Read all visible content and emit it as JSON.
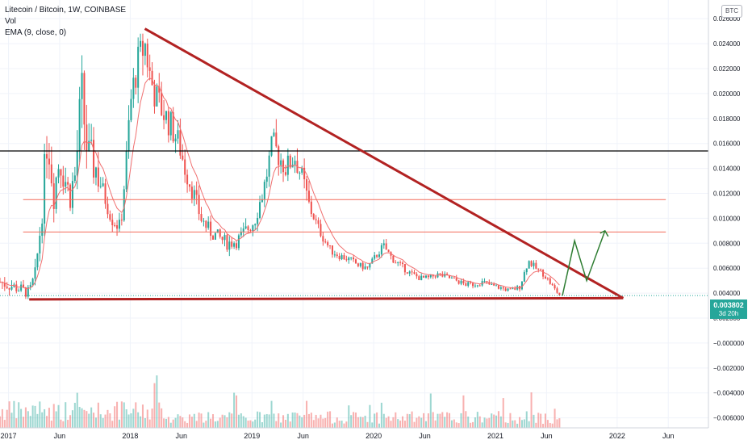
{
  "legend": {
    "title": "Litecoin / Bitcoin, 1W, COINBASE",
    "vol": "Vol",
    "ema": "EMA (9, close, 0)"
  },
  "currency_button": "BTC",
  "last_price": {
    "value": "0.003802",
    "countdown": "3d 20h",
    "color": "#26a69a"
  },
  "colors": {
    "up": "#26a69a",
    "down": "#ef5350",
    "ema": "#f07070",
    "trend": "#b22222",
    "level": "#f26b5b",
    "black_level": "#000000",
    "projection": "#2e7d32"
  },
  "chart_data": {
    "type": "candlestick",
    "y_axis": {
      "ticks": [
        "0.026000",
        "0.024000",
        "0.022000",
        "0.020000",
        "0.018000",
        "0.016000",
        "0.014000",
        "0.012000",
        "0.010000",
        "0.008000",
        "0.006000",
        "0.004000",
        "0.002000",
        "−0.000000",
        "−0.002000",
        "−0.004000",
        "−0.006000"
      ],
      "range": [
        -0.0068,
        0.0275
      ]
    },
    "x_axis": {
      "ticks": [
        "2017",
        "Jun",
        "2018",
        "Jun",
        "2019",
        "Jun",
        "2020",
        "Jun",
        "2021",
        "Jun",
        "2022",
        "Jun"
      ],
      "tick_dates": [
        2017.0,
        2017.42,
        2018.0,
        2018.42,
        2019.0,
        2019.42,
        2020.0,
        2020.42,
        2021.0,
        2021.42,
        2022.0,
        2022.42
      ],
      "range": [
        2016.93,
        2022.75
      ]
    },
    "price_path": [
      [
        2016.93,
        0.0049
      ],
      [
        2017.02,
        0.0046
      ],
      [
        2017.1,
        0.0043
      ],
      [
        2017.17,
        0.004
      ],
      [
        2017.22,
        0.0055
      ],
      [
        2017.27,
        0.01
      ],
      [
        2017.32,
        0.017
      ],
      [
        2017.37,
        0.012
      ],
      [
        2017.42,
        0.015
      ],
      [
        2017.5,
        0.0118
      ],
      [
        2017.55,
        0.0135
      ],
      [
        2017.6,
        0.02
      ],
      [
        2017.65,
        0.015
      ],
      [
        2017.72,
        0.014
      ],
      [
        2017.78,
        0.012
      ],
      [
        2017.85,
        0.01
      ],
      [
        2017.92,
        0.0092
      ],
      [
        2017.97,
        0.015
      ],
      [
        2018.0,
        0.019
      ],
      [
        2018.05,
        0.022
      ],
      [
        2018.12,
        0.024
      ],
      [
        2018.17,
        0.021
      ],
      [
        2018.22,
        0.0195
      ],
      [
        2018.27,
        0.0185
      ],
      [
        2018.33,
        0.0175
      ],
      [
        2018.4,
        0.016
      ],
      [
        2018.45,
        0.014
      ],
      [
        2018.52,
        0.012
      ],
      [
        2018.58,
        0.01
      ],
      [
        2018.65,
        0.009
      ],
      [
        2018.72,
        0.0085
      ],
      [
        2018.8,
        0.008
      ],
      [
        2018.88,
        0.0082
      ],
      [
        2018.95,
        0.009
      ],
      [
        2019.02,
        0.0098
      ],
      [
        2019.1,
        0.0125
      ],
      [
        2019.17,
        0.016
      ],
      [
        2019.22,
        0.015
      ],
      [
        2019.28,
        0.014
      ],
      [
        2019.35,
        0.015
      ],
      [
        2019.42,
        0.013
      ],
      [
        2019.47,
        0.011
      ],
      [
        2019.52,
        0.0098
      ],
      [
        2019.58,
        0.0085
      ],
      [
        2019.65,
        0.0074
      ],
      [
        2019.72,
        0.007
      ],
      [
        2019.8,
        0.0067
      ],
      [
        2019.88,
        0.0062
      ],
      [
        2019.95,
        0.006
      ],
      [
        2020.02,
        0.007
      ],
      [
        2020.08,
        0.0078
      ],
      [
        2020.15,
        0.0068
      ],
      [
        2020.22,
        0.0062
      ],
      [
        2020.3,
        0.0056
      ],
      [
        2020.38,
        0.0052
      ],
      [
        2020.45,
        0.0052
      ],
      [
        2020.52,
        0.0055
      ],
      [
        2020.6,
        0.0053
      ],
      [
        2020.68,
        0.005
      ],
      [
        2020.75,
        0.0047
      ],
      [
        2020.82,
        0.0047
      ],
      [
        2020.9,
        0.0049
      ],
      [
        2020.97,
        0.0046
      ],
      [
        2021.05,
        0.0044
      ],
      [
        2021.12,
        0.0042
      ],
      [
        2021.2,
        0.0045
      ],
      [
        2021.27,
        0.0066
      ],
      [
        2021.33,
        0.006
      ],
      [
        2021.4,
        0.0055
      ],
      [
        2021.48,
        0.0044
      ],
      [
        2021.53,
        0.0038
      ]
    ],
    "ema_period": 9,
    "horizontal_levels": [
      0.0154,
      0.0115,
      0.0089
    ],
    "triangle": {
      "upper": [
        [
          2018.12,
          0.0252
        ],
        [
          2022.05,
          0.0036
        ]
      ],
      "lower": [
        [
          2017.17,
          0.0035
        ],
        [
          2022.05,
          0.0036
        ]
      ]
    },
    "projection": [
      [
        2021.55,
        0.0038
      ],
      [
        2021.65,
        0.0082
      ],
      [
        2021.75,
        0.005
      ],
      [
        2021.9,
        0.009
      ]
    ]
  }
}
